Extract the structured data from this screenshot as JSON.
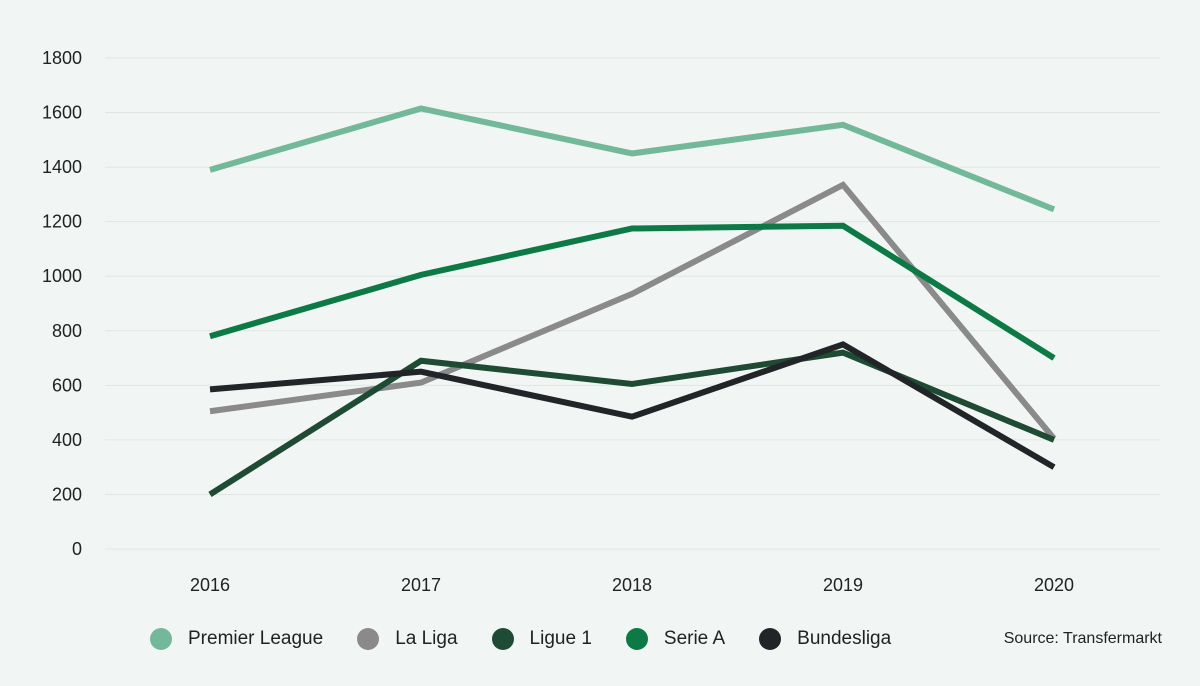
{
  "chart_data": {
    "type": "line",
    "title": "",
    "xlabel": "",
    "ylabel": "",
    "categories": [
      "2016",
      "2017",
      "2018",
      "2019",
      "2020"
    ],
    "ylim": [
      0,
      1800
    ],
    "yticks": [
      0,
      200,
      400,
      600,
      800,
      1000,
      1200,
      1400,
      1600,
      1800
    ],
    "grid": true,
    "legend_position": "bottom",
    "series": [
      {
        "name": "Premier League",
        "color": "#74b89a",
        "values": [
          1390,
          1615,
          1450,
          1555,
          1245
        ]
      },
      {
        "name": "La Liga",
        "color": "#8a8a8a",
        "values": [
          505,
          610,
          935,
          1335,
          405
        ]
      },
      {
        "name": "Ligue 1",
        "color": "#1f4a33",
        "values": [
          200,
          690,
          605,
          720,
          400
        ]
      },
      {
        "name": "Serie A",
        "color": "#0d7a46",
        "values": [
          780,
          1005,
          1175,
          1185,
          700
        ]
      },
      {
        "name": "Bundesliga",
        "color": "#222527",
        "values": [
          585,
          650,
          485,
          750,
          300
        ]
      }
    ]
  },
  "source": "Source: Transfermarkt"
}
